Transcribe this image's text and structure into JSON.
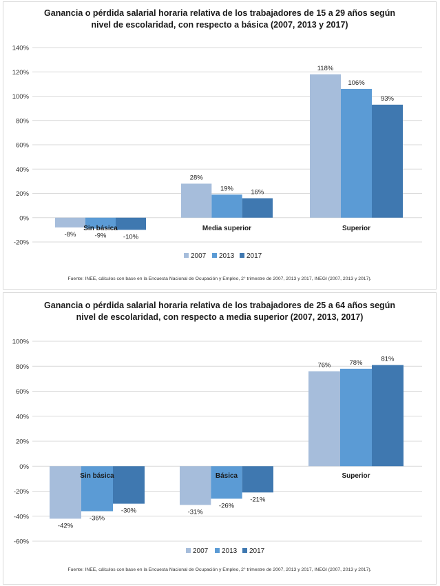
{
  "colors": {
    "s2007": "#a6bddb",
    "s2013": "#5b9bd5",
    "s2017": "#3f78b0",
    "grid": "#d9d9d9",
    "axis_text": "#333333"
  },
  "chart_data": [
    {
      "type": "bar",
      "title_line1": "Ganancia o pérdida salarial horaria relativa de los trabajadores de 15 a 29 años según",
      "title_line2": "nivel de escolaridad, con respecto a básica (2007,  2013  y 2017)",
      "categories": [
        "Sin básica",
        "Media superior",
        "Superior"
      ],
      "series": [
        {
          "name": "2007",
          "values": [
            -8,
            28,
            118
          ],
          "labels": [
            "-8%",
            "28%",
            "118%"
          ]
        },
        {
          "name": "2013",
          "values": [
            -9,
            19,
            106
          ],
          "labels": [
            "-9%",
            "19%",
            "106%"
          ]
        },
        {
          "name": "2017",
          "values": [
            -10,
            16,
            93
          ],
          "labels": [
            "-10%",
            "16%",
            "93%"
          ]
        }
      ],
      "ylim": [
        -20,
        140
      ],
      "yticks": [
        -20,
        0,
        20,
        40,
        60,
        80,
        100,
        120,
        140
      ],
      "ytick_labels": [
        "-20%",
        "0%",
        "20%",
        "40%",
        "60%",
        "80%",
        "100%",
        "120%",
        "140%"
      ],
      "grid": true,
      "legend_position": "bottom",
      "source": "Fuente: INEE,  cálculos con base en la Encuesta Nacional de Ocupación y Empleo,  2° trimestre  de 2007, 2013 y 2017, INEGI (2007, 2013 y 2017)."
    },
    {
      "type": "bar",
      "title_line1": "Ganancia o pérdida salarial horaria relativa de los trabajadores de 25 a 64 años según",
      "title_line2": "nivel de escolaridad, con respecto a media superior (2007,  2013,  2017)",
      "categories": [
        "Sin básica",
        "Básica",
        "Superior"
      ],
      "series": [
        {
          "name": "2007",
          "values": [
            -42,
            -31,
            76
          ],
          "labels": [
            "-42%",
            "-31%",
            "76%"
          ]
        },
        {
          "name": "2013",
          "values": [
            -36,
            -26,
            78
          ],
          "labels": [
            "-36%",
            "-26%",
            "78%"
          ]
        },
        {
          "name": "2017",
          "values": [
            -30,
            -21,
            81
          ],
          "labels": [
            "-30%",
            "-21%",
            "81%"
          ]
        }
      ],
      "ylim": [
        -60,
        100
      ],
      "yticks": [
        -60,
        -40,
        -20,
        0,
        20,
        40,
        60,
        80,
        100
      ],
      "ytick_labels": [
        "-60%",
        "-40%",
        "-20%",
        "0%",
        "20%",
        "40%",
        "60%",
        "80%",
        "100%"
      ],
      "grid": true,
      "legend_position": "bottom",
      "source": "Fuente:  INEE,  cálculos con base en la Encuesta  Nacional de Ocupación y Empleo,  2° trimestre  de 2007, 2013 y 2017, INEGI (2007, 2013 y 2017)."
    }
  ]
}
